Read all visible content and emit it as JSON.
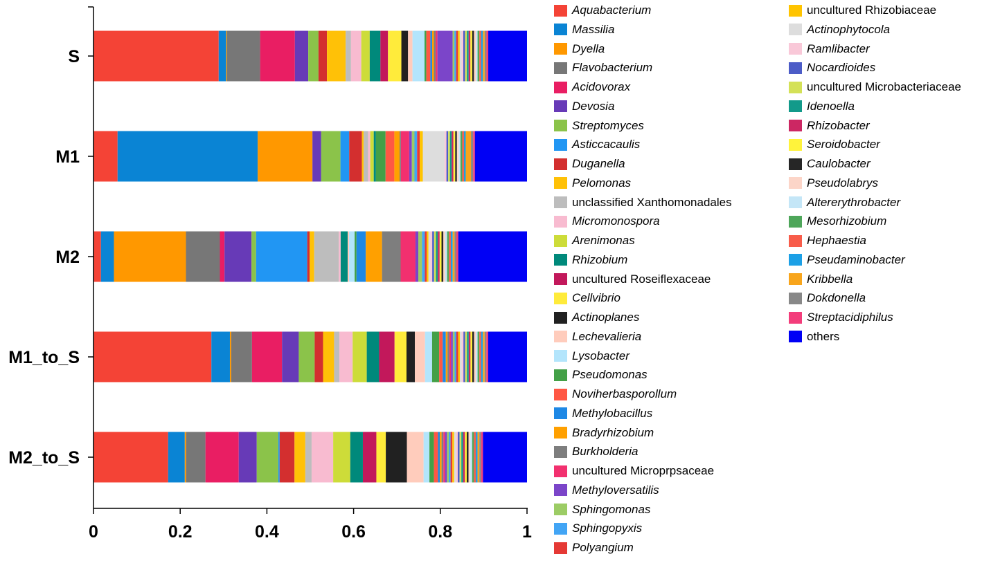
{
  "chart_data": {
    "type": "bar",
    "orientation": "horizontal",
    "stacked": true,
    "title": "",
    "xlabel": "",
    "ylabel": "",
    "xlim": [
      0,
      1
    ],
    "x_ticks": [
      "0",
      "0.2",
      "0.4",
      "0.6",
      "0.8",
      "1"
    ],
    "x_tick_values": [
      0,
      0.2,
      0.4,
      0.6,
      0.8,
      1
    ],
    "categories": [
      "S",
      "M1",
      "M2",
      "M1_to_S",
      "M2_to_S"
    ],
    "legend_position": "right",
    "series": [
      {
        "name": "Aquabacterium",
        "italic": true,
        "color": "#f44336",
        "values": [
          0.281,
          0.055,
          0.016,
          0.267,
          0.166
        ]
      },
      {
        "name": "Massilia",
        "italic": true,
        "color": "#0a84d4",
        "values": [
          0.017,
          0.32,
          0.028,
          0.042,
          0.037
        ]
      },
      {
        "name": "Dyella",
        "italic": true,
        "color": "#ff9800",
        "values": [
          0.002,
          0.125,
          0.155,
          0.003,
          0.003
        ]
      },
      {
        "name": "Flavobacterium",
        "italic": true,
        "color": "#777777",
        "values": [
          0.074,
          0.0,
          0.073,
          0.047,
          0.043
        ]
      },
      {
        "name": "Acidovorax",
        "italic": true,
        "color": "#e91e63",
        "values": [
          0.078,
          0.0,
          0.01,
          0.068,
          0.074
        ]
      },
      {
        "name": "Devosia",
        "italic": true,
        "color": "#673ab7",
        "values": [
          0.03,
          0.02,
          0.058,
          0.038,
          0.04
        ]
      },
      {
        "name": "Streptomyces",
        "italic": true,
        "color": "#8bc34a",
        "values": [
          0.023,
          0.044,
          0.01,
          0.036,
          0.048
        ]
      },
      {
        "name": "Asticcacaulis",
        "italic": true,
        "color": "#2196f3",
        "values": [
          0.0,
          0.02,
          0.11,
          0.0,
          0.003
        ]
      },
      {
        "name": "Duganella",
        "italic": true,
        "color": "#d32f2f",
        "values": [
          0.019,
          0.029,
          0.005,
          0.019,
          0.033
        ]
      },
      {
        "name": "Pelomonas",
        "italic": true,
        "color": "#ffc107",
        "values": [
          0.042,
          0.004,
          0.01,
          0.025,
          0.024
        ]
      },
      {
        "name": "unclassified Xanthomonadales",
        "italic": false,
        "color": "#bdbdbd",
        "values": [
          0.012,
          0.01,
          0.053,
          0.012,
          0.014
        ]
      },
      {
        "name": "Micromonospora",
        "italic": true,
        "color": "#f8bbd0",
        "values": [
          0.023,
          0.005,
          0.004,
          0.03,
          0.048
        ]
      },
      {
        "name": "Arenimonas",
        "italic": true,
        "color": "#cddc39",
        "values": [
          0.019,
          0.008,
          0.0,
          0.032,
          0.038
        ]
      },
      {
        "name": "Rhizobium",
        "italic": true,
        "color": "#00897b",
        "values": [
          0.024,
          0.005,
          0.015,
          0.028,
          0.028
        ]
      },
      {
        "name": "uncultured Roseiflexaceae",
        "italic": false,
        "color": "#c2185b",
        "values": [
          0.017,
          0.0,
          0.0,
          0.035,
          0.03
        ]
      },
      {
        "name": "Cellvibrio",
        "italic": true,
        "color": "#ffeb3b",
        "values": [
          0.03,
          0.0,
          0.0,
          0.027,
          0.021
        ]
      },
      {
        "name": "Actinoplanes",
        "italic": true,
        "color": "#212121",
        "values": [
          0.015,
          0.0,
          0.0,
          0.019,
          0.047
        ]
      },
      {
        "name": "Lechevalieria",
        "italic": true,
        "color": "#ffccbc",
        "values": [
          0.01,
          0.0,
          0.003,
          0.023,
          0.037
        ]
      },
      {
        "name": "Lysobacter",
        "italic": true,
        "color": "#b3e5fc",
        "values": [
          0.027,
          0.0,
          0.012,
          0.016,
          0.013
        ]
      },
      {
        "name": "Pseudomonas",
        "italic": true,
        "color": "#43a047",
        "values": [
          0.004,
          0.022,
          0.004,
          0.016,
          0.01
        ]
      },
      {
        "name": "Noviherbasporollum",
        "italic": true,
        "color": "#ff5744",
        "values": [
          0.009,
          0.02,
          0.0,
          0.008,
          0.009
        ]
      },
      {
        "name": "Methylobacillus",
        "italic": true,
        "color": "#1e88e5",
        "values": [
          0.004,
          0.0,
          0.02,
          0.007,
          0.004
        ]
      },
      {
        "name": "Bradyrhizobium",
        "italic": true,
        "color": "#ffa000",
        "values": [
          0.004,
          0.012,
          0.035,
          0.004,
          0.004
        ]
      },
      {
        "name": "Burkholderia",
        "italic": true,
        "color": "#7e7e7e",
        "values": [
          0.004,
          0.003,
          0.04,
          0.004,
          0.004
        ]
      },
      {
        "name": "uncultured Microprpsaceae",
        "italic": false,
        "color": "#f2306f",
        "values": [
          0.004,
          0.019,
          0.032,
          0.004,
          0.004
        ]
      },
      {
        "name": "Methyloversatilis",
        "italic": true,
        "color": "#7b45c9",
        "values": [
          0.034,
          0.006,
          0.006,
          0.004,
          0.004
        ]
      },
      {
        "name": "Sphingomonas",
        "italic": true,
        "color": "#9ccc65",
        "values": [
          0.004,
          0.006,
          0.008,
          0.004,
          0.004
        ]
      },
      {
        "name": "Sphingopyxis",
        "italic": true,
        "color": "#42a5f5",
        "values": [
          0.004,
          0.006,
          0.006,
          0.004,
          0.004
        ]
      },
      {
        "name": "Polyangium",
        "italic": true,
        "color": "#e53935",
        "values": [
          0.004,
          0.006,
          0.004,
          0.004,
          0.004
        ]
      },
      {
        "name": "uncultured Rhizobiaceae",
        "italic": false,
        "color": "#ffc400",
        "values": [
          0.004,
          0.007,
          0.004,
          0.004,
          0.004
        ]
      },
      {
        "name": "Actinophytocola",
        "italic": true,
        "color": "#dddddd",
        "values": [
          0.004,
          0.05,
          0.004,
          0.004,
          0.004
        ]
      },
      {
        "name": "Ramlibacter",
        "italic": true,
        "color": "#f9c8d8",
        "values": [
          0.004,
          0.004,
          0.004,
          0.004,
          0.004
        ]
      },
      {
        "name": "Nocardioides",
        "italic": true,
        "color": "#4c5cc7",
        "values": [
          0.004,
          0.004,
          0.004,
          0.004,
          0.004
        ]
      },
      {
        "name": "uncultured Microbacteriaceae",
        "italic": false,
        "color": "#d4e157",
        "values": [
          0.004,
          0.004,
          0.004,
          0.004,
          0.004
        ]
      },
      {
        "name": "Idenoella",
        "italic": true,
        "color": "#129a8a",
        "values": [
          0.004,
          0.004,
          0.004,
          0.004,
          0.004
        ]
      },
      {
        "name": "Rhizobacter",
        "italic": true,
        "color": "#cc2763",
        "values": [
          0.004,
          0.004,
          0.004,
          0.004,
          0.004
        ]
      },
      {
        "name": "Seroidobacter",
        "italic": true,
        "color": "#fff33b",
        "values": [
          0.004,
          0.004,
          0.004,
          0.004,
          0.004
        ]
      },
      {
        "name": "Caulobacter",
        "italic": true,
        "color": "#262626",
        "values": [
          0.004,
          0.004,
          0.004,
          0.004,
          0.004
        ]
      },
      {
        "name": "Pseudolabrys",
        "italic": true,
        "color": "#fcd5c8",
        "values": [
          0.004,
          0.004,
          0.004,
          0.004,
          0.004
        ]
      },
      {
        "name": "Altererythrobacter",
        "italic": true,
        "color": "#c4e6f7",
        "values": [
          0.004,
          0.004,
          0.004,
          0.004,
          0.004
        ]
      },
      {
        "name": "Mesorhizobium",
        "italic": true,
        "color": "#4ea65a",
        "values": [
          0.004,
          0.004,
          0.004,
          0.004,
          0.004
        ]
      },
      {
        "name": "Hephaestia",
        "italic": true,
        "color": "#f85c4a",
        "values": [
          0.004,
          0.004,
          0.004,
          0.004,
          0.004
        ]
      },
      {
        "name": "Pseudaminobacter",
        "italic": true,
        "color": "#1ca0e6",
        "values": [
          0.004,
          0.004,
          0.004,
          0.004,
          0.004
        ]
      },
      {
        "name": "Kribbella",
        "italic": true,
        "color": "#f8a51c",
        "values": [
          0.004,
          0.012,
          0.004,
          0.004,
          0.004
        ]
      },
      {
        "name": "Dokdonella",
        "italic": true,
        "color": "#888888",
        "values": [
          0.004,
          0.005,
          0.004,
          0.004,
          0.004
        ]
      },
      {
        "name": "Streptacidiphilus",
        "italic": true,
        "color": "#f33d7b",
        "values": [
          0.004,
          0.004,
          0.004,
          0.004,
          0.004
        ]
      },
      {
        "name": "others",
        "italic": false,
        "color": "#0000f5",
        "values": [
          0.087,
          0.119,
          0.148,
          0.088,
          0.098
        ]
      }
    ]
  }
}
